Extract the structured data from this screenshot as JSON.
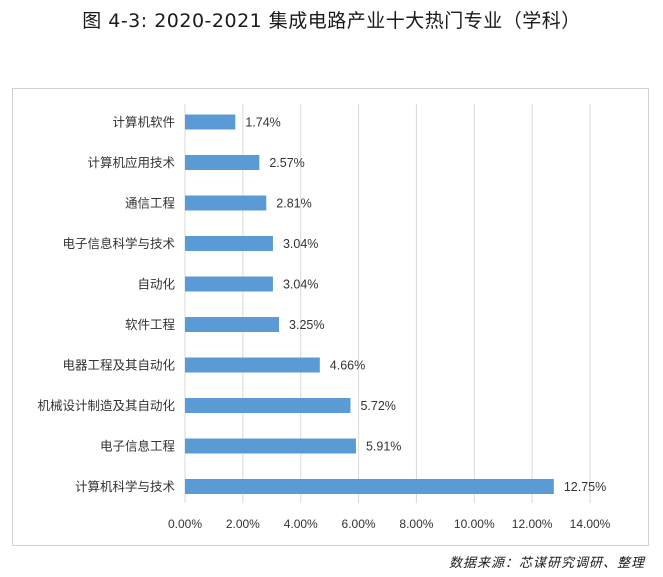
{
  "title": "图 4-3: 2020-2021 集成电路产业十大热门专业（学科）",
  "source": "数据来源：芯谋研究调研、整理",
  "colors": {
    "bar": "#5b9bd5",
    "gridline": "#d9d9d9",
    "text": "#333333"
  },
  "chart_data": {
    "type": "bar",
    "orientation": "horizontal",
    "categories": [
      "计算机软件",
      "计算机应用技术",
      "通信工程",
      "电子信息科学与技术",
      "自动化",
      "软件工程",
      "电器工程及其自动化",
      "机械设计制造及其自动化",
      "电子信息工程",
      "计算机科学与技术"
    ],
    "values": [
      1.74,
      2.57,
      2.81,
      3.04,
      3.04,
      3.25,
      4.66,
      5.72,
      5.91,
      12.75
    ],
    "data_labels": [
      "1.74%",
      "2.57%",
      "2.81%",
      "3.04%",
      "3.04%",
      "3.25%",
      "4.66%",
      "5.72%",
      "5.91%",
      "12.75%"
    ],
    "xlim": [
      0,
      14
    ],
    "x_ticks": [
      "0.00%",
      "2.00%",
      "4.00%",
      "6.00%",
      "8.00%",
      "10.00%",
      "12.00%",
      "14.00%"
    ],
    "grid": true,
    "legend": "none"
  }
}
